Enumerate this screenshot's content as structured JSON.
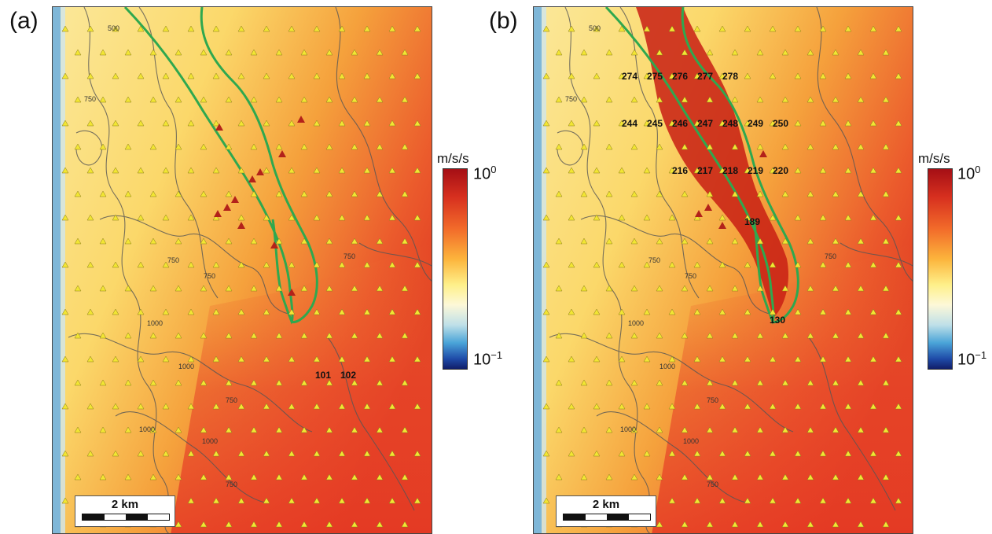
{
  "panels": [
    {
      "letter": "(a)",
      "station_labels": [
        {
          "text": "101",
          "station": "101"
        },
        {
          "text": "102",
          "station": "102"
        }
      ],
      "contour_labels": [
        "500",
        "750",
        "750",
        "750",
        "750",
        "1000",
        "1000",
        "750",
        "1000",
        "1000",
        "750"
      ],
      "scale_label": "2 km"
    },
    {
      "letter": "(b)",
      "station_labels": [
        {
          "text": "274"
        },
        {
          "text": "275"
        },
        {
          "text": "276"
        },
        {
          "text": "277"
        },
        {
          "text": "278"
        },
        {
          "text": "244"
        },
        {
          "text": "245"
        },
        {
          "text": "246"
        },
        {
          "text": "247"
        },
        {
          "text": "248"
        },
        {
          "text": "249"
        },
        {
          "text": "250"
        },
        {
          "text": "216"
        },
        {
          "text": "217"
        },
        {
          "text": "218"
        },
        {
          "text": "219"
        },
        {
          "text": "220"
        },
        {
          "text": "189"
        },
        {
          "text": "130"
        }
      ],
      "contour_labels": [
        "500",
        "750",
        "750",
        "750",
        "750",
        "1000",
        "1000",
        "750",
        "1000",
        "1000",
        "750"
      ],
      "scale_label": "2 km"
    }
  ],
  "colorbar": {
    "unit": "m/s/s",
    "top_base": "10",
    "top_exp": "0",
    "bottom_base": "10",
    "bottom_exp": "−1",
    "scale": "log",
    "range": [
      0.1,
      1.0
    ]
  },
  "colors": {
    "station_marker": "#f2e633",
    "highlight_marker": "#b3221a",
    "outline": "#2fa84f",
    "contour": "#555555",
    "coast_blue": "#7fb7d8"
  }
}
